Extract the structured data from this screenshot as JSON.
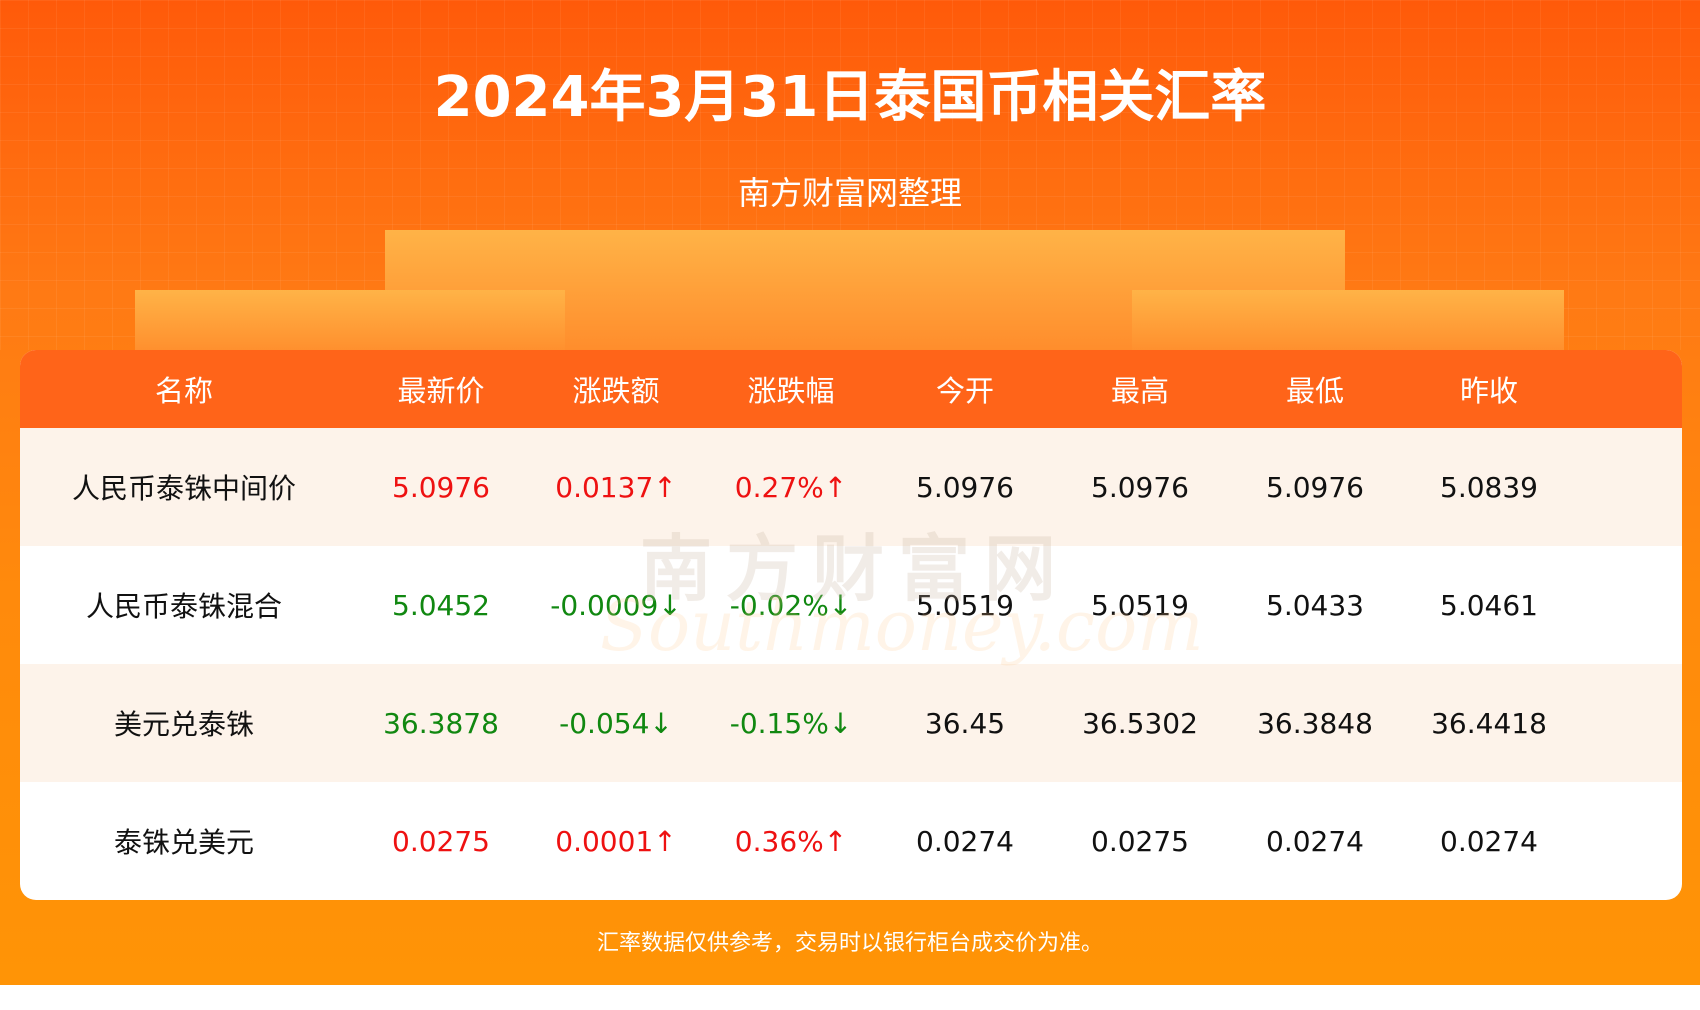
{
  "header": {
    "title": "2024年3月31日泰国币相关汇率",
    "subtitle": "南方财富网整理"
  },
  "table": {
    "columns": [
      "名称",
      "最新价",
      "涨跌额",
      "涨跌幅",
      "今开",
      "最高",
      "最低",
      "昨收"
    ],
    "rows": [
      {
        "cells": [
          "人民币泰铢中间价",
          "5.0976",
          "0.0137↑",
          "0.27%↑",
          "5.0976",
          "5.0976",
          "5.0976",
          "5.0839"
        ],
        "trend": "up"
      },
      {
        "cells": [
          "人民币泰铢混合",
          "5.0452",
          "-0.0009↓",
          "-0.02%↓",
          "5.0519",
          "5.0519",
          "5.0433",
          "5.0461"
        ],
        "trend": "down"
      },
      {
        "cells": [
          "美元兑泰铢",
          "36.3878",
          "-0.054↓",
          "-0.15%↓",
          "36.45",
          "36.5302",
          "36.3848",
          "36.4418"
        ],
        "trend": "down"
      },
      {
        "cells": [
          "泰铢兑美元",
          "0.0275",
          "0.0001↑",
          "0.36%↑",
          "0.0274",
          "0.0275",
          "0.0274",
          "0.0274"
        ],
        "trend": "up"
      }
    ]
  },
  "watermark": {
    "cn": "南方财富网",
    "en": "Southmoney.com"
  },
  "footer": {
    "note": "汇率数据仅供参考，交易时以银行柜台成交价为准。"
  },
  "colors": {
    "header_bg": "#ff6419",
    "up": "#ee1111",
    "down": "#118811",
    "row_alt": "#fdf3ea"
  }
}
